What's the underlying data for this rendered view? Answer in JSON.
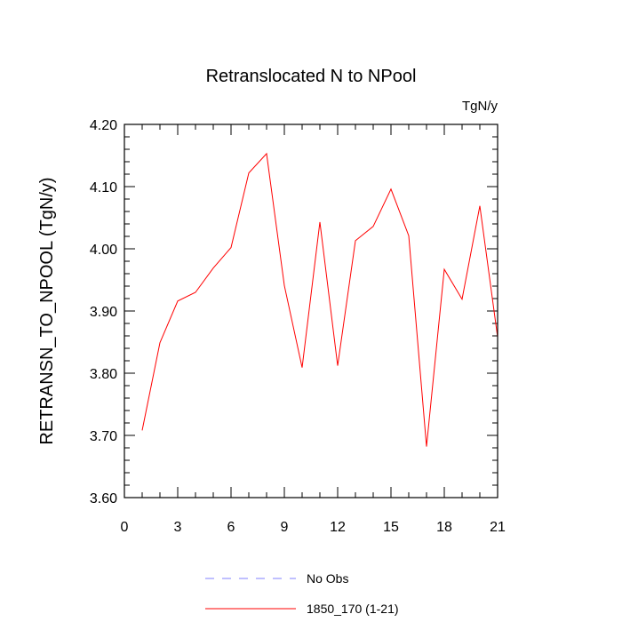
{
  "chart_data": {
    "type": "line",
    "title": "Retranslocated N to NPool",
    "units_label": "TgN/y",
    "ylabel": "RETRANSN_TO_NPOOL  (TgN/y)",
    "xlabel": "",
    "xlim": [
      0,
      21
    ],
    "ylim": [
      3.6,
      4.2
    ],
    "x_ticks": [
      0,
      3,
      6,
      9,
      12,
      15,
      18,
      21
    ],
    "x_tick_labels": [
      "0",
      "3",
      "6",
      "9",
      "12",
      "15",
      "18",
      "21"
    ],
    "y_ticks": [
      3.6,
      3.7,
      3.8,
      3.9,
      4.0,
      4.1,
      4.2
    ],
    "y_tick_labels": [
      "3.60",
      "3.70",
      "3.80",
      "3.90",
      "4.00",
      "4.10",
      "4.20"
    ],
    "series": [
      {
        "name": "1850_170 (1-21)",
        "color": "#ff0000",
        "dash": "solid",
        "x": [
          1,
          2,
          3,
          4,
          5,
          6,
          7,
          8,
          9,
          10,
          11,
          12,
          13,
          14,
          15,
          16,
          17,
          18,
          19,
          20,
          21
        ],
        "values": [
          3.708,
          3.849,
          3.916,
          3.93,
          3.969,
          4.002,
          4.122,
          4.153,
          3.941,
          3.809,
          4.043,
          3.812,
          4.013,
          4.036,
          4.096,
          4.021,
          3.682,
          3.967,
          3.919,
          4.069,
          3.858
        ]
      }
    ],
    "legend": {
      "placement": "bottom-center",
      "entries": [
        {
          "label": "No Obs",
          "color": "#8080ff",
          "dash": "dashed"
        },
        {
          "label": "1850_170 (1-21)",
          "color": "#ff0000",
          "dash": "solid"
        }
      ]
    }
  }
}
